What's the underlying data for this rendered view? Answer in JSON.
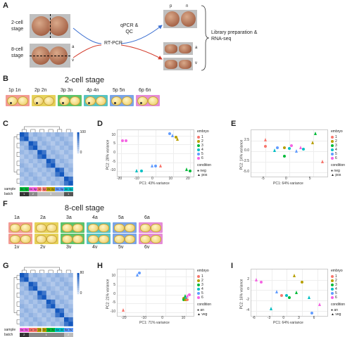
{
  "panel_labels": {
    "A": "A",
    "B": "B",
    "C": "C",
    "D": "D",
    "E": "E",
    "F": "F",
    "G": "G",
    "H": "H",
    "I": "I"
  },
  "panelA": {
    "two_cell": "2-cell\nstage",
    "eight_cell": "8-cell\nstage",
    "rtpcr": "RT-PCR",
    "qpcr": "qPCR &\nQC",
    "library": "Library preparation &\nRNA-seq",
    "label_p": "p",
    "label_n": "n",
    "label_a": "a",
    "label_v": "v",
    "label_a2": "a",
    "label_v2": "v"
  },
  "panelB": {
    "title": "2-cell stage",
    "pairs": [
      {
        "label": "1p  1n",
        "color": "#f39b94"
      },
      {
        "label": "2p  2n",
        "color": "#e6d25a"
      },
      {
        "label": "3p  3n",
        "color": "#5cc36b"
      },
      {
        "label": "4p  4n",
        "color": "#57c3c3"
      },
      {
        "label": "5p  5n",
        "color": "#7aa4e8"
      },
      {
        "label": "6p  6n",
        "color": "#e58bd7"
      }
    ]
  },
  "panelC": {
    "row_label": "sample",
    "batch_label": "batch",
    "sample_tags": [
      "3n",
      "3p",
      "6n",
      "6p",
      "1n",
      "1p",
      "2n",
      "2p",
      "5n",
      "5p",
      "4n",
      "4p"
    ],
    "batch_tags": [
      "1",
      "2",
      "3",
      "1"
    ],
    "scale_top": "100",
    "scale_bottom": "0"
  },
  "panelD": {
    "xlabel": "PC1: 43% variance",
    "ylabel": "PC2: 28% variance",
    "x_ticks": [
      "-20",
      "-10",
      "0",
      "10",
      "20"
    ],
    "y_ticks": [
      "10",
      "5",
      "0",
      "-5",
      "-10"
    ],
    "legend_title": "embryo",
    "embryos": [
      "1",
      "2",
      "3",
      "4",
      "5",
      "6"
    ],
    "condition_title": "condition",
    "conditions": [
      "neg",
      "pos"
    ]
  },
  "panelE": {
    "xlabel": "PC1: 64% variance",
    "ylabel": "PC2: 14% variance",
    "x_ticks": [
      "-5",
      "0",
      "5"
    ],
    "y_ticks": [
      "2.5",
      "0.0",
      "-2.5",
      "-5.0"
    ],
    "legend_title": "embryo",
    "embryos": [
      "1",
      "2",
      "3",
      "4",
      "5",
      "6"
    ],
    "condition_title": "condition",
    "conditions": [
      "neg",
      "pos"
    ]
  },
  "panelF": {
    "title": "8-cell stage",
    "top_labels": [
      "1a",
      "2a",
      "3a",
      "4a",
      "5a",
      "6a"
    ],
    "bottom_labels": [
      "1v",
      "2v",
      "3v",
      "4v",
      "5v",
      "6v"
    ],
    "colors": [
      "#f39b94",
      "#e6d25a",
      "#5cc36b",
      "#57c3c3",
      "#7aa4e8",
      "#e58bd7"
    ]
  },
  "panelG": {
    "row_label": "sample",
    "batch_label": "batch",
    "sample_tags": [
      "6a",
      "6v",
      "1a",
      "1v",
      "2a",
      "2v",
      "3a",
      "3v",
      "4a",
      "4v",
      "5a",
      "5v"
    ],
    "batch_tags": [
      "2",
      "1",
      "2"
    ],
    "scale_top": "80",
    "scale_bottom": "0"
  },
  "panelH": {
    "xlabel": "PC1: 71% variance",
    "ylabel": "PC2: 21% variance",
    "x_ticks": [
      "-20",
      "-10",
      "0",
      "10"
    ],
    "y_ticks": [
      "10",
      "5",
      "0",
      "-5",
      "-10"
    ],
    "legend_title": "embryo",
    "embryos": [
      "1",
      "2",
      "3",
      "4",
      "5",
      "6"
    ],
    "condition_title": "condition",
    "conditions": [
      "an",
      "veg"
    ]
  },
  "panelI": {
    "xlabel": "PC1: 64% variance",
    "ylabel": "PC2: 16% variance",
    "x_ticks": [
      "-6",
      "-3",
      "0",
      "3",
      "6"
    ],
    "y_ticks": [
      "2",
      "0",
      "-2",
      "-4"
    ],
    "legend_title": "embryo",
    "embryos": [
      "1",
      "2",
      "3",
      "4",
      "5",
      "6"
    ],
    "condition_title": "condition",
    "conditions": [
      "an",
      "veg"
    ]
  },
  "colors": {
    "e1": "#f8766d",
    "e2": "#b79f00",
    "e3": "#00ba38",
    "e4": "#00bfc4",
    "e5": "#619cff",
    "e6": "#f564e3",
    "arrow_blue": "#3b6fd1",
    "arrow_red": "#d23a2a"
  }
}
